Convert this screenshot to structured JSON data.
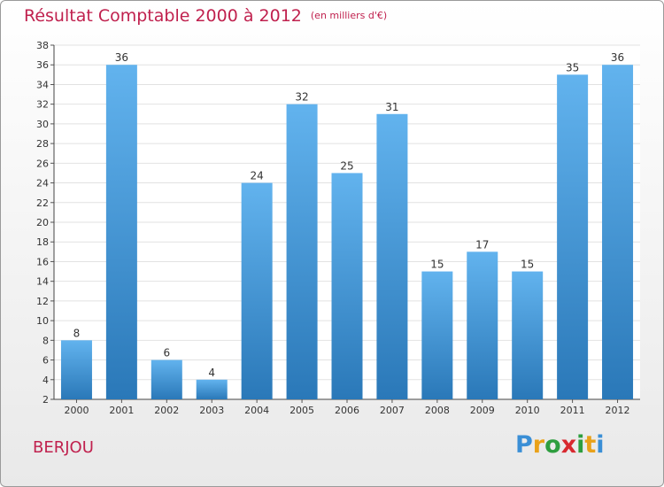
{
  "header": {
    "title": "Résultat Comptable 2000 à 2012",
    "unit": "(en milliers d'€)"
  },
  "place": "BERJOU",
  "logo": {
    "letters": [
      "P",
      "r",
      "o",
      "x",
      "i",
      "t",
      "i"
    ],
    "colors": [
      "#3a8fd6",
      "#e9a21a",
      "#2e9e3f",
      "#d8292f",
      "#2e9e3f",
      "#e9a21a",
      "#3a8fd6"
    ]
  },
  "colors": {
    "bar_light": "#62b3ee",
    "bar_dark": "#2a78b8",
    "title": "#c0214e"
  },
  "chart_data": {
    "type": "bar",
    "title": "Résultat Comptable 2000 à 2012",
    "xlabel": "",
    "ylabel": "",
    "categories": [
      "2000",
      "2001",
      "2002",
      "2003",
      "2004",
      "2005",
      "2006",
      "2007",
      "2008",
      "2009",
      "2010",
      "2011",
      "2012"
    ],
    "values": [
      8,
      36,
      6,
      4,
      24,
      32,
      25,
      31,
      15,
      17,
      15,
      35,
      36
    ],
    "ylim": [
      2,
      38
    ],
    "yticks": [
      2,
      4,
      6,
      8,
      10,
      12,
      14,
      16,
      18,
      20,
      22,
      24,
      26,
      28,
      30,
      32,
      34,
      36,
      38
    ],
    "grid": true,
    "legend": "none"
  }
}
